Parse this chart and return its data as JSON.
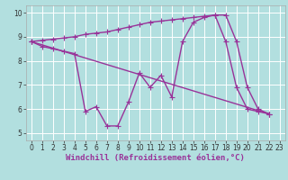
{
  "xlabel": "Windchill (Refroidissement éolien,°C)",
  "xlim": [
    -0.5,
    23.5
  ],
  "ylim": [
    4.7,
    10.3
  ],
  "yticks": [
    5,
    6,
    7,
    8,
    9,
    10
  ],
  "xticks": [
    0,
    1,
    2,
    3,
    4,
    5,
    6,
    7,
    8,
    9,
    10,
    11,
    12,
    13,
    14,
    15,
    16,
    17,
    18,
    19,
    20,
    21,
    22,
    23
  ],
  "background_color": "#b2dfdf",
  "plot_bg_color": "#b2dfdf",
  "line_color": "#993399",
  "grid_color": "#ffffff",
  "lines": [
    {
      "x": [
        0,
        1,
        2,
        3,
        4,
        5,
        6,
        7,
        8,
        9,
        10,
        11,
        12,
        13,
        14,
        15,
        16,
        17,
        18,
        19,
        20,
        21,
        22
      ],
      "y": [
        8.8,
        8.6,
        8.5,
        8.4,
        8.3,
        5.9,
        6.1,
        5.3,
        5.3,
        6.3,
        7.5,
        6.9,
        7.4,
        6.5,
        8.8,
        9.6,
        9.8,
        9.9,
        8.8,
        6.9,
        6.0,
        5.9,
        5.8
      ]
    },
    {
      "x": [
        0,
        22
      ],
      "y": [
        8.8,
        5.8
      ]
    },
    {
      "x": [
        0,
        1,
        2,
        3,
        4,
        5,
        6,
        7,
        8,
        9,
        10,
        11,
        12,
        13,
        14,
        15,
        16,
        17,
        18,
        19,
        20,
        21,
        22
      ],
      "y": [
        8.8,
        8.85,
        8.9,
        8.95,
        9.0,
        9.1,
        9.15,
        9.2,
        9.3,
        9.4,
        9.5,
        9.6,
        9.65,
        9.7,
        9.75,
        9.8,
        9.85,
        9.9,
        9.9,
        8.8,
        6.9,
        6.0,
        5.8
      ]
    }
  ],
  "marker": "+",
  "markersize": 4,
  "linewidth": 1.0,
  "tick_fontsize": 5.5,
  "xlabel_fontsize": 6.5
}
